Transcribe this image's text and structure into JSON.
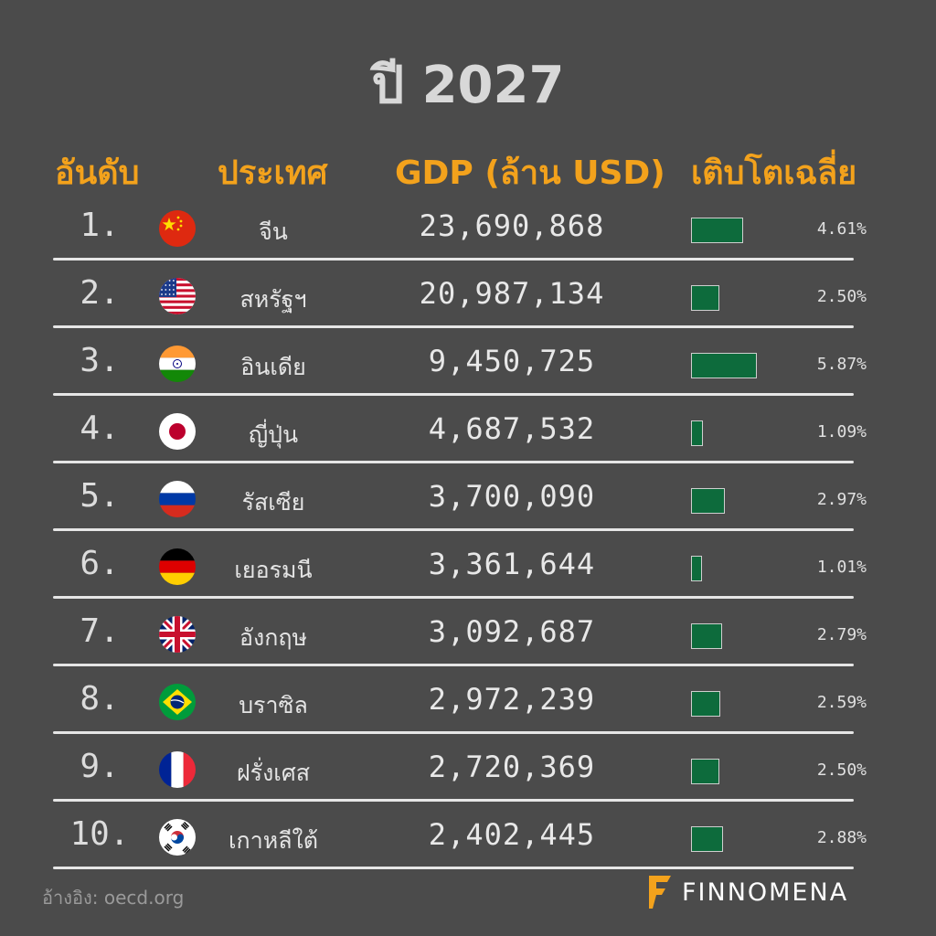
{
  "title": "ปี 2027",
  "headers": {
    "rank": "อันดับ",
    "country": "ประเทศ",
    "gdp": "GDP (ล้าน USD)",
    "growth": "เติบโตเฉลี่ย"
  },
  "chart_data": {
    "type": "table",
    "columns": [
      "อันดับ",
      "ประเทศ",
      "GDP (ล้าน USD)",
      "เติบโตเฉลี่ย"
    ],
    "rows": [
      {
        "rank": "1.",
        "country": "จีน",
        "flag": "china-flag-icon",
        "gdp": "23,690,868",
        "growth_value": 4.61,
        "growth": "4.61%"
      },
      {
        "rank": "2.",
        "country": "สหรัฐฯ",
        "flag": "usa-flag-icon",
        "gdp": "20,987,134",
        "growth_value": 2.5,
        "growth": "2.50%"
      },
      {
        "rank": "3.",
        "country": "อินเดีย",
        "flag": "india-flag-icon",
        "gdp": "9,450,725",
        "growth_value": 5.87,
        "growth": "5.87%"
      },
      {
        "rank": "4.",
        "country": "ญี่ปุ่น",
        "flag": "japan-flag-icon",
        "gdp": "4,687,532",
        "growth_value": 1.09,
        "growth": "1.09%"
      },
      {
        "rank": "5.",
        "country": "รัสเซีย",
        "flag": "russia-flag-icon",
        "gdp": "3,700,090",
        "growth_value": 2.97,
        "growth": "2.97%"
      },
      {
        "rank": "6.",
        "country": "เยอรมนี",
        "flag": "germany-flag-icon",
        "gdp": "3,361,644",
        "growth_value": 1.01,
        "growth": "1.01%"
      },
      {
        "rank": "7.",
        "country": "อังกฤษ",
        "flag": "uk-flag-icon",
        "gdp": "3,092,687",
        "growth_value": 2.79,
        "growth": "2.79%"
      },
      {
        "rank": "8.",
        "country": "บราซิล",
        "flag": "brazil-flag-icon",
        "gdp": "2,972,239",
        "growth_value": 2.59,
        "growth": "2.59%"
      },
      {
        "rank": "9.",
        "country": "ฝรั่งเศส",
        "flag": "france-flag-icon",
        "gdp": "2,720,369",
        "growth_value": 2.5,
        "growth": "2.50%"
      },
      {
        "rank": "10.",
        "country": "เกาหลีใต้",
        "flag": "south-korea-flag-icon",
        "gdp": "2,402,445",
        "growth_value": 2.88,
        "growth": "2.88%"
      }
    ],
    "bar_color": "#0d6b3c"
  },
  "footnote": "อ้างอิง: oecd.org",
  "brand": {
    "name": "FINNOMENA",
    "logo_color": "#f3a21c"
  },
  "colors": {
    "background": "#4b4b4b",
    "header": "#f3a21c"
  }
}
